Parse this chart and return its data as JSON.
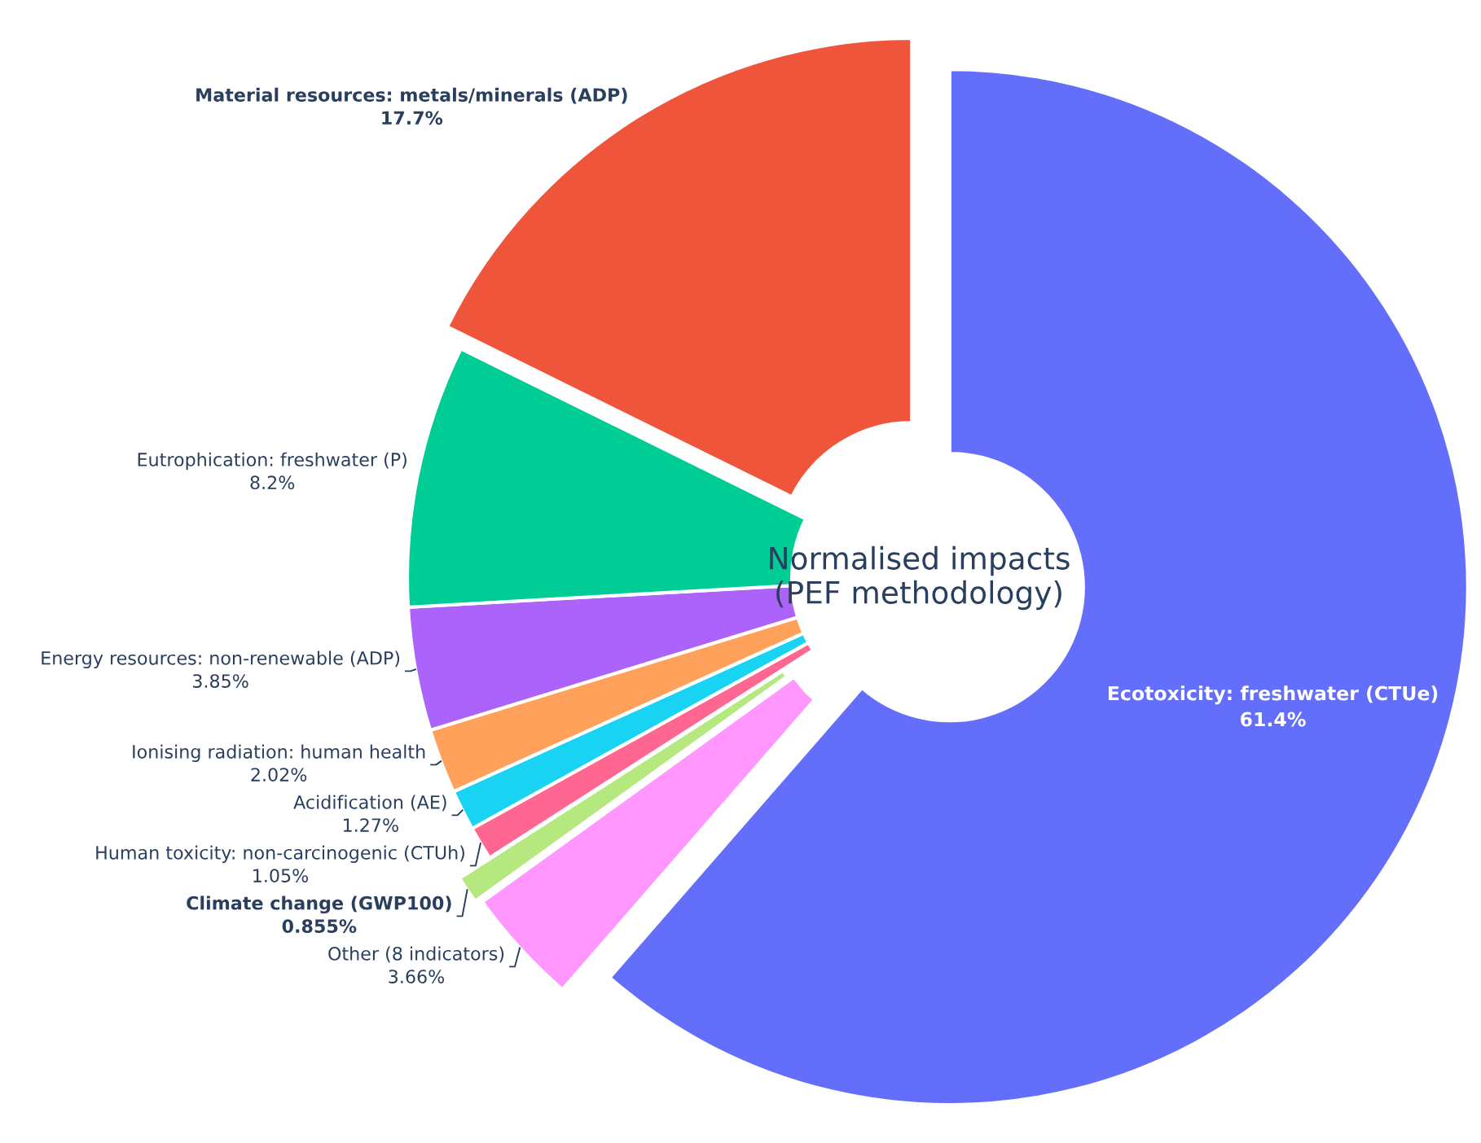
{
  "chart_data": {
    "type": "donut",
    "title": "Normalised impacts\n(PEF methodology)",
    "categories": [
      "Ecotoxicity: freshwater (CTUe)",
      "Other (8 indicators)",
      "Climate change (GWP100)",
      "Human toxicity: non-carcinogenic (CTUh)",
      "Acidification (AE)",
      "Ionising radiation: human health",
      "Energy resources: non-renewable (ADP)",
      "Eutrophication: freshwater (P)",
      "Material resources: metals/minerals (ADP)"
    ],
    "values": [
      61.4,
      3.66,
      0.855,
      1.05,
      1.27,
      2.02,
      3.85,
      8.2,
      17.7
    ],
    "value_labels": [
      "61.4%",
      "3.66%",
      "0.855%",
      "1.05%",
      "1.27%",
      "2.02%",
      "3.85%",
      "8.2%",
      "17.7%"
    ],
    "colors": [
      "#636efa",
      "#ff97ff",
      "#b6e880",
      "#ff6692",
      "#19d3f3",
      "#ffa15a",
      "#ab63fa",
      "#00cc96",
      "#ef553b"
    ]
  }
}
